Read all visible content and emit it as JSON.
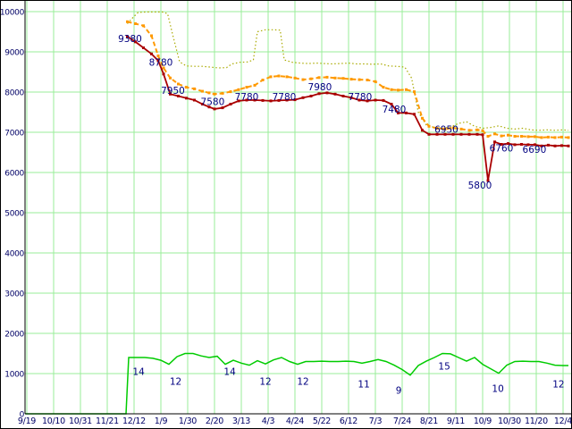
{
  "chart_data": {
    "type": "line",
    "title": "",
    "xlabel": "",
    "ylabel": "",
    "ylim": [
      0,
      10000
    ],
    "grid": true,
    "legend": "none",
    "background": "#ffffff",
    "grid_color": "#99ee99",
    "axis_color": "#000000",
    "axis_text_color": "#000066",
    "annotation_color": "#000080",
    "x_tick_labels": [
      "9/19",
      "10/10",
      "10/31",
      "11/21",
      "12/12",
      "1/9",
      "1/30",
      "2/20",
      "3/13",
      "4/3",
      "4/24",
      "5/22",
      "6/12",
      "7/3",
      "7/24",
      "8/21",
      "9/11",
      "10/9",
      "10/30",
      "11/20",
      "12/4"
    ],
    "y_ticks": [
      0,
      1000,
      2000,
      3000,
      4000,
      5000,
      6000,
      7000,
      8000,
      9000,
      10000
    ],
    "series": [
      {
        "name": "olive-dotted-line",
        "color": "#aaaa00",
        "dash": "1.5,2.5",
        "width": 1.2,
        "marker": 0,
        "points": [
          [
            3.75,
            9700
          ],
          [
            3.95,
            9850
          ],
          [
            4.15,
            9980
          ],
          [
            4.45,
            9990
          ],
          [
            4.75,
            9990
          ],
          [
            5.05,
            9990
          ],
          [
            5.25,
            9950
          ],
          [
            5.45,
            9400
          ],
          [
            5.7,
            8750
          ],
          [
            5.95,
            8650
          ],
          [
            6.25,
            8640
          ],
          [
            6.55,
            8640
          ],
          [
            6.85,
            8620
          ],
          [
            7.15,
            8600
          ],
          [
            7.45,
            8610
          ],
          [
            7.65,
            8700
          ],
          [
            7.95,
            8740
          ],
          [
            8.25,
            8750
          ],
          [
            8.45,
            8800
          ],
          [
            8.6,
            9500
          ],
          [
            8.9,
            9550
          ],
          [
            9.2,
            9550
          ],
          [
            9.45,
            9540
          ],
          [
            9.6,
            8800
          ],
          [
            9.9,
            8740
          ],
          [
            10.2,
            8720
          ],
          [
            10.5,
            8710
          ],
          [
            10.8,
            8720
          ],
          [
            11.1,
            8710
          ],
          [
            11.4,
            8700
          ],
          [
            11.7,
            8710
          ],
          [
            12.0,
            8720
          ],
          [
            12.3,
            8700
          ],
          [
            12.6,
            8700
          ],
          [
            12.9,
            8690
          ],
          [
            13.2,
            8700
          ],
          [
            13.5,
            8650
          ],
          [
            13.8,
            8640
          ],
          [
            14.1,
            8620
          ],
          [
            14.35,
            8350
          ],
          [
            14.6,
            7500
          ],
          [
            14.9,
            7180
          ],
          [
            15.2,
            7120
          ],
          [
            15.5,
            7100
          ],
          [
            15.8,
            7130
          ],
          [
            16.1,
            7220
          ],
          [
            16.4,
            7260
          ],
          [
            16.7,
            7150
          ],
          [
            17.0,
            7100
          ],
          [
            17.3,
            7120
          ],
          [
            17.6,
            7160
          ],
          [
            17.9,
            7100
          ],
          [
            18.2,
            7080
          ],
          [
            18.5,
            7100
          ],
          [
            18.8,
            7060
          ],
          [
            19.1,
            7050
          ],
          [
            19.4,
            7060
          ],
          [
            19.7,
            7050
          ],
          [
            20.0,
            7060
          ],
          [
            20.2,
            7050
          ]
        ]
      },
      {
        "name": "orange-dashed-line",
        "color": "#ff9900",
        "dash": "5,3",
        "width": 2,
        "marker": 3,
        "points": [
          [
            3.75,
            9750
          ],
          [
            4.05,
            9700
          ],
          [
            4.35,
            9650
          ],
          [
            4.65,
            9400
          ],
          [
            4.9,
            8900
          ],
          [
            5.1,
            8600
          ],
          [
            5.35,
            8350
          ],
          [
            5.65,
            8200
          ],
          [
            5.95,
            8120
          ],
          [
            6.25,
            8080
          ],
          [
            6.55,
            8020
          ],
          [
            6.8,
            7980
          ],
          [
            7.0,
            7950
          ],
          [
            7.3,
            7970
          ],
          [
            7.6,
            8010
          ],
          [
            7.9,
            8060
          ],
          [
            8.2,
            8120
          ],
          [
            8.5,
            8170
          ],
          [
            8.8,
            8300
          ],
          [
            9.1,
            8380
          ],
          [
            9.4,
            8400
          ],
          [
            9.7,
            8380
          ],
          [
            10.0,
            8350
          ],
          [
            10.3,
            8310
          ],
          [
            10.6,
            8330
          ],
          [
            10.9,
            8360
          ],
          [
            11.2,
            8370
          ],
          [
            11.5,
            8350
          ],
          [
            11.8,
            8340
          ],
          [
            12.1,
            8320
          ],
          [
            12.4,
            8310
          ],
          [
            12.7,
            8300
          ],
          [
            13.0,
            8260
          ],
          [
            13.3,
            8120
          ],
          [
            13.6,
            8060
          ],
          [
            13.85,
            8050
          ],
          [
            14.15,
            8060
          ],
          [
            14.45,
            8010
          ],
          [
            14.75,
            7350
          ],
          [
            15.0,
            7150
          ],
          [
            15.3,
            7100
          ],
          [
            15.6,
            7080
          ],
          [
            15.9,
            7110
          ],
          [
            16.2,
            7080
          ],
          [
            16.5,
            7050
          ],
          [
            16.8,
            7060
          ],
          [
            17.0,
            7040
          ],
          [
            17.2,
            6900
          ],
          [
            17.45,
            6960
          ],
          [
            17.7,
            6910
          ],
          [
            17.95,
            6930
          ],
          [
            18.2,
            6900
          ],
          [
            18.45,
            6900
          ],
          [
            18.7,
            6890
          ],
          [
            18.95,
            6890
          ],
          [
            19.2,
            6870
          ],
          [
            19.45,
            6880
          ],
          [
            19.7,
            6870
          ],
          [
            19.95,
            6880
          ],
          [
            20.2,
            6870
          ]
        ]
      },
      {
        "name": "red-solid-line",
        "color": "#aa0000",
        "dash": "",
        "width": 1.8,
        "marker": 3,
        "points": [
          [
            3.75,
            9380
          ],
          [
            4.05,
            9250
          ],
          [
            4.35,
            9100
          ],
          [
            4.65,
            8950
          ],
          [
            4.9,
            8780
          ],
          [
            5.1,
            8450
          ],
          [
            5.35,
            7950
          ],
          [
            5.65,
            7900
          ],
          [
            5.95,
            7850
          ],
          [
            6.25,
            7800
          ],
          [
            6.55,
            7700
          ],
          [
            6.8,
            7630
          ],
          [
            7.0,
            7580
          ],
          [
            7.3,
            7610
          ],
          [
            7.6,
            7700
          ],
          [
            7.9,
            7780
          ],
          [
            8.2,
            7800
          ],
          [
            8.5,
            7800
          ],
          [
            8.8,
            7790
          ],
          [
            9.1,
            7780
          ],
          [
            9.4,
            7790
          ],
          [
            9.7,
            7800
          ],
          [
            10.0,
            7810
          ],
          [
            10.3,
            7860
          ],
          [
            10.6,
            7900
          ],
          [
            10.9,
            7960
          ],
          [
            11.2,
            7980
          ],
          [
            11.5,
            7950
          ],
          [
            11.8,
            7900
          ],
          [
            12.1,
            7860
          ],
          [
            12.4,
            7800
          ],
          [
            12.7,
            7780
          ],
          [
            13.0,
            7800
          ],
          [
            13.3,
            7790
          ],
          [
            13.6,
            7700
          ],
          [
            13.85,
            7480
          ],
          [
            14.15,
            7480
          ],
          [
            14.45,
            7450
          ],
          [
            14.75,
            7050
          ],
          [
            15.0,
            6950
          ],
          [
            15.3,
            6950
          ],
          [
            15.6,
            6950
          ],
          [
            15.9,
            6950
          ],
          [
            16.2,
            6950
          ],
          [
            16.5,
            6950
          ],
          [
            16.8,
            6950
          ],
          [
            17.0,
            6940
          ],
          [
            17.2,
            5800
          ],
          [
            17.45,
            6760
          ],
          [
            17.7,
            6700
          ],
          [
            17.95,
            6720
          ],
          [
            18.2,
            6690
          ],
          [
            18.45,
            6700
          ],
          [
            18.7,
            6690
          ],
          [
            18.95,
            6690
          ],
          [
            19.2,
            6660
          ],
          [
            19.45,
            6680
          ],
          [
            19.7,
            6660
          ],
          [
            19.95,
            6670
          ],
          [
            20.2,
            6660
          ]
        ]
      },
      {
        "name": "green-solid-line",
        "color": "#00cc00",
        "dash": "",
        "width": 1.5,
        "marker": 0,
        "points": [
          [
            -0.05,
            0
          ],
          [
            0.5,
            0
          ],
          [
            1.0,
            0
          ],
          [
            1.5,
            0
          ],
          [
            2.0,
            0
          ],
          [
            2.5,
            0
          ],
          [
            3.0,
            0
          ],
          [
            3.5,
            0
          ],
          [
            3.7,
            0
          ],
          [
            3.8,
            1400
          ],
          [
            4.1,
            1400
          ],
          [
            4.4,
            1400
          ],
          [
            4.7,
            1380
          ],
          [
            5.0,
            1330
          ],
          [
            5.3,
            1230
          ],
          [
            5.6,
            1420
          ],
          [
            5.9,
            1500
          ],
          [
            6.2,
            1500
          ],
          [
            6.5,
            1440
          ],
          [
            6.8,
            1400
          ],
          [
            7.1,
            1430
          ],
          [
            7.4,
            1230
          ],
          [
            7.7,
            1330
          ],
          [
            8.0,
            1260
          ],
          [
            8.3,
            1210
          ],
          [
            8.6,
            1320
          ],
          [
            8.9,
            1240
          ],
          [
            9.2,
            1340
          ],
          [
            9.5,
            1400
          ],
          [
            9.8,
            1300
          ],
          [
            10.1,
            1230
          ],
          [
            10.4,
            1300
          ],
          [
            10.7,
            1300
          ],
          [
            11.0,
            1310
          ],
          [
            11.3,
            1300
          ],
          [
            11.6,
            1300
          ],
          [
            11.9,
            1310
          ],
          [
            12.2,
            1300
          ],
          [
            12.5,
            1260
          ],
          [
            12.8,
            1300
          ],
          [
            13.1,
            1350
          ],
          [
            13.4,
            1300
          ],
          [
            13.7,
            1210
          ],
          [
            14.0,
            1100
          ],
          [
            14.3,
            960
          ],
          [
            14.6,
            1200
          ],
          [
            14.9,
            1310
          ],
          [
            15.2,
            1400
          ],
          [
            15.5,
            1500
          ],
          [
            15.8,
            1490
          ],
          [
            16.1,
            1400
          ],
          [
            16.4,
            1310
          ],
          [
            16.7,
            1400
          ],
          [
            17.0,
            1230
          ],
          [
            17.3,
            1120
          ],
          [
            17.6,
            1010
          ],
          [
            17.9,
            1210
          ],
          [
            18.2,
            1300
          ],
          [
            18.5,
            1310
          ],
          [
            18.8,
            1300
          ],
          [
            19.1,
            1300
          ],
          [
            19.4,
            1260
          ],
          [
            19.7,
            1210
          ],
          [
            20.0,
            1200
          ],
          [
            20.2,
            1200
          ]
        ]
      }
    ],
    "annotations": [
      {
        "text": "9380",
        "t": 3.85,
        "v": 9320
      },
      {
        "text": "8780",
        "t": 5.0,
        "v": 8730
      },
      {
        "text": "7950",
        "t": 5.45,
        "v": 8030
      },
      {
        "text": "7580",
        "t": 6.93,
        "v": 7760
      },
      {
        "text": "7780",
        "t": 8.2,
        "v": 7880
      },
      {
        "text": "7780",
        "t": 9.6,
        "v": 7880
      },
      {
        "text": "7980",
        "t": 10.93,
        "v": 8120
      },
      {
        "text": "7780",
        "t": 12.43,
        "v": 7880
      },
      {
        "text": "7480",
        "t": 13.7,
        "v": 7570
      },
      {
        "text": "6950",
        "t": 15.65,
        "v": 7070
      },
      {
        "text": "5800",
        "t": 16.9,
        "v": 5680
      },
      {
        "text": "6760",
        "t": 17.7,
        "v": 6600
      },
      {
        "text": "6690",
        "t": 18.93,
        "v": 6570
      },
      {
        "text": "14",
        "t": 4.17,
        "v": 1050
      },
      {
        "text": "12",
        "t": 5.55,
        "v": 800
      },
      {
        "text": "14",
        "t": 7.57,
        "v": 1050
      },
      {
        "text": "12",
        "t": 8.9,
        "v": 800
      },
      {
        "text": "12",
        "t": 10.3,
        "v": 800
      },
      {
        "text": "11",
        "t": 12.57,
        "v": 730
      },
      {
        "text": "9",
        "t": 13.87,
        "v": 580
      },
      {
        "text": "15",
        "t": 15.57,
        "v": 1180
      },
      {
        "text": "10",
        "t": 17.57,
        "v": 620
      },
      {
        "text": "12",
        "t": 19.83,
        "v": 730
      }
    ]
  }
}
